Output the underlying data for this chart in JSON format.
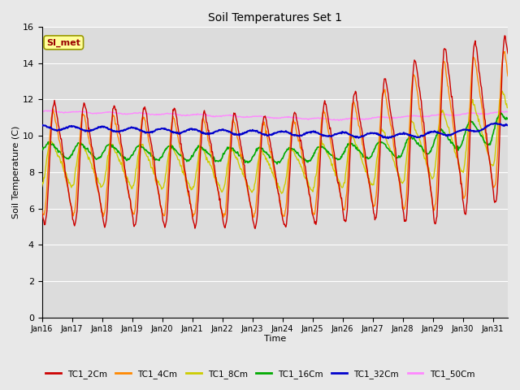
{
  "title": "Soil Temperatures Set 1",
  "xlabel": "Time",
  "ylabel": "Soil Temperature (C)",
  "annotation_text": "SI_met",
  "ylim": [
    0,
    16
  ],
  "fig_bg": "#e8e8e8",
  "plot_bg": "#dcdcdc",
  "series": [
    {
      "label": "TC1_2Cm",
      "color": "#cc0000",
      "lw": 1.0,
      "zorder": 5
    },
    {
      "label": "TC1_4Cm",
      "color": "#ff8800",
      "lw": 1.0,
      "zorder": 4
    },
    {
      "label": "TC1_8Cm",
      "color": "#cccc00",
      "lw": 1.0,
      "zorder": 3
    },
    {
      "label": "TC1_16Cm",
      "color": "#00aa00",
      "lw": 1.2,
      "zorder": 3
    },
    {
      "label": "TC1_32Cm",
      "color": "#0000cc",
      "lw": 1.5,
      "zorder": 6
    },
    {
      "label": "TC1_50Cm",
      "color": "#ff88ff",
      "lw": 1.0,
      "zorder": 2
    }
  ],
  "x_tick_labels": [
    "Jan 16",
    "Jan 17",
    "Jan 18",
    "Jan 19",
    "Jan 20",
    "Jan 21",
    "Jan 22",
    "Jan 23",
    "Jan 24",
    "Jan 25",
    "Jan 26",
    "Jan 27",
    "Jan 28",
    "Jan 29",
    "Jan 30",
    "Jan 31"
  ],
  "yticks": [
    0,
    2,
    4,
    6,
    8,
    10,
    12,
    14,
    16
  ],
  "n_days": 15.5,
  "n_points": 744,
  "seed": 42
}
